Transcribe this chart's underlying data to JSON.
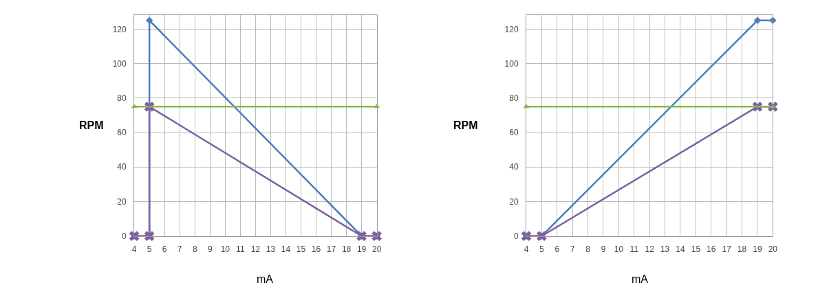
{
  "chart_data": [
    {
      "type": "line",
      "xlabel": "mA",
      "ylabel": "RPM",
      "xlim": [
        4,
        20
      ],
      "ylim": [
        0,
        128
      ],
      "xticks": [
        4,
        5,
        6,
        7,
        8,
        9,
        10,
        11,
        12,
        13,
        14,
        15,
        16,
        17,
        18,
        19,
        20
      ],
      "yticks": [
        0,
        20,
        40,
        60,
        80,
        100,
        120
      ],
      "grid": true,
      "line_style": "solid",
      "series": [
        {
          "color": "#4a7ebb",
          "marker": "diamond",
          "x": [
            4,
            5,
            5,
            19,
            20
          ],
          "values": [
            0,
            0,
            125,
            0,
            0
          ]
        },
        {
          "color": "#7d60a0",
          "marker": "cross",
          "x": [
            4,
            5,
            5,
            19,
            20
          ],
          "values": [
            0,
            0,
            75,
            0,
            0
          ]
        },
        {
          "color": "#82bb4a",
          "marker": "triangle",
          "x": [
            4,
            20
          ],
          "values": [
            75,
            75
          ]
        }
      ]
    },
    {
      "type": "line",
      "xlabel": "mA",
      "ylabel": "RPM",
      "xlim": [
        4,
        20
      ],
      "ylim": [
        0,
        128
      ],
      "xticks": [
        4,
        5,
        6,
        7,
        8,
        9,
        10,
        11,
        12,
        13,
        14,
        15,
        16,
        17,
        18,
        19,
        20
      ],
      "yticks": [
        0,
        20,
        40,
        60,
        80,
        100,
        120
      ],
      "grid": true,
      "line_style": "solid",
      "series": [
        {
          "color": "#4a7ebb",
          "marker": "diamond",
          "x": [
            4,
            5,
            19,
            20
          ],
          "values": [
            0,
            0,
            125,
            125
          ]
        },
        {
          "color": "#7d60a0",
          "marker": "cross",
          "x": [
            4,
            5,
            19,
            20
          ],
          "values": [
            0,
            0,
            75,
            75
          ]
        },
        {
          "color": "#82bb4a",
          "marker": "triangle",
          "x": [
            4,
            20
          ],
          "values": [
            75,
            75
          ]
        }
      ]
    }
  ]
}
